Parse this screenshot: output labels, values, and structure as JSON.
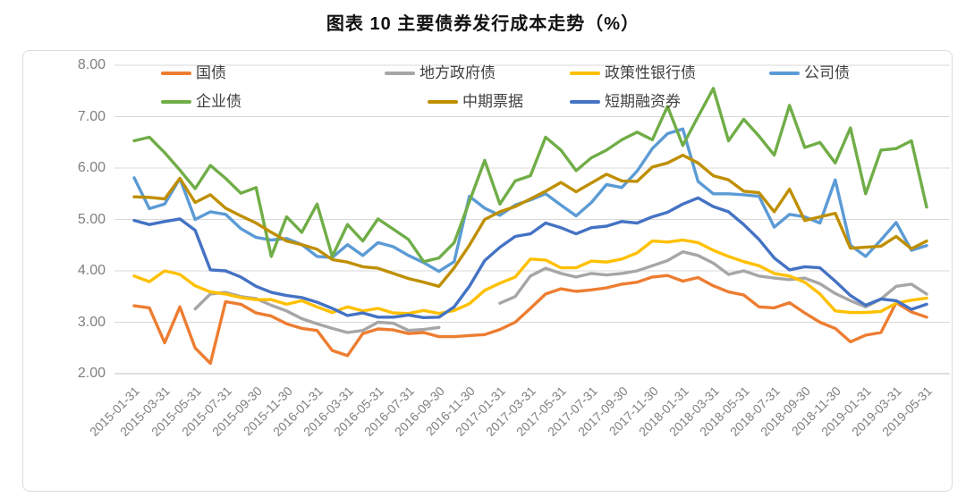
{
  "title": "图表 10 主要债券发行成本走势（%）",
  "chart_data": {
    "type": "line",
    "title": "图表 10 主要债券发行成本走势（%）",
    "unit": "%",
    "ylim": [
      2,
      8
    ],
    "y_tick_labels": [
      "8.00",
      "7.00",
      "6.00",
      "5.00",
      "4.00",
      "3.00",
      "2.00"
    ],
    "x_tick_labels": [
      "2015-01-31",
      "2015-03-31",
      "2015-05-31",
      "2015-07-31",
      "2015-09-30",
      "2015-11-30",
      "2016-01-31",
      "2016-03-31",
      "2016-05-31",
      "2016-07-31",
      "2016-09-30",
      "2016-11-30",
      "2017-01-31",
      "2017-03-31",
      "2017-05-31",
      "2017-07-31",
      "2017-09-30",
      "2017-11-30",
      "2018-01-31",
      "2018-03-31",
      "2018-05-31",
      "2018-07-31",
      "2018-09-30",
      "2018-11-30",
      "2019-01-31",
      "2019-03-31",
      "2019-05-31"
    ],
    "points_per_tick": 2,
    "x_range_months": "2015-01 to 2019-05, monthly (53 points)",
    "grid": "horizontal",
    "legend_position": "top, two rows overlaying plot",
    "legend_rows": [
      [
        "treasury",
        "local-gov",
        "policy-bank",
        "corporate"
      ],
      [
        "enterprise",
        "mtn",
        "scp"
      ]
    ],
    "series": [
      {
        "id": "treasury",
        "name": "国债",
        "color": "#ED7D31",
        "values": [
          3.32,
          3.28,
          2.6,
          3.3,
          2.5,
          2.2,
          3.4,
          3.35,
          3.18,
          3.12,
          2.97,
          2.88,
          2.84,
          2.45,
          2.35,
          2.78,
          2.87,
          2.85,
          2.78,
          2.8,
          2.72,
          2.72,
          2.74,
          2.76,
          2.86,
          3.0,
          3.27,
          3.55,
          3.65,
          3.6,
          3.63,
          3.67,
          3.74,
          3.78,
          3.88,
          3.91,
          3.8,
          3.87,
          3.71,
          3.59,
          3.53,
          3.3,
          3.28,
          3.38,
          3.18,
          3.0,
          2.88,
          2.62,
          2.75,
          2.8,
          3.38,
          3.2,
          3.1
        ]
      },
      {
        "id": "local-gov",
        "name": "地方政府债",
        "color": "#A6A6A6",
        "values": [
          null,
          null,
          null,
          null,
          3.26,
          3.55,
          3.58,
          3.5,
          3.46,
          3.33,
          3.22,
          3.07,
          2.97,
          2.88,
          2.8,
          2.84,
          3.0,
          2.98,
          2.84,
          2.86,
          2.9,
          null,
          null,
          null,
          3.37,
          3.5,
          3.9,
          4.05,
          3.95,
          3.88,
          3.95,
          3.92,
          3.95,
          4.0,
          4.1,
          4.2,
          4.37,
          4.3,
          4.15,
          3.93,
          4.0,
          3.9,
          3.86,
          3.83,
          3.86,
          3.75,
          3.56,
          3.42,
          3.3,
          3.45,
          3.7,
          3.74,
          3.55
        ]
      },
      {
        "id": "policy-bank",
        "name": "政策性银行债",
        "color": "#FFC000",
        "values": [
          3.9,
          3.79,
          4.0,
          3.93,
          3.71,
          3.59,
          3.55,
          3.48,
          3.44,
          3.44,
          3.35,
          3.42,
          3.3,
          3.19,
          3.3,
          3.22,
          3.27,
          3.18,
          3.17,
          3.23,
          3.17,
          3.23,
          3.36,
          3.62,
          3.76,
          3.88,
          4.23,
          4.21,
          4.06,
          4.06,
          4.19,
          4.17,
          4.23,
          4.35,
          4.58,
          4.56,
          4.6,
          4.55,
          4.4,
          4.28,
          4.18,
          4.1,
          3.95,
          3.9,
          3.78,
          3.55,
          3.22,
          3.19,
          3.19,
          3.21,
          3.37,
          3.43,
          3.47
        ]
      },
      {
        "id": "corporate",
        "name": "公司债",
        "color": "#5B9BD5",
        "values": [
          5.81,
          5.21,
          5.3,
          5.8,
          5.0,
          5.15,
          5.1,
          4.82,
          4.65,
          4.6,
          4.63,
          4.51,
          4.28,
          4.26,
          4.51,
          4.3,
          4.55,
          4.47,
          4.3,
          4.16,
          3.99,
          4.18,
          5.45,
          5.22,
          5.08,
          5.28,
          5.38,
          5.5,
          5.28,
          5.07,
          5.33,
          5.68,
          5.62,
          5.94,
          6.38,
          6.67,
          6.76,
          5.74,
          5.5,
          5.5,
          5.48,
          5.45,
          4.85,
          5.1,
          5.05,
          4.93,
          5.77,
          4.5,
          4.28,
          4.6,
          4.94,
          4.4,
          4.49
        ]
      },
      {
        "id": "enterprise",
        "name": "企业债",
        "color": "#70AD47",
        "values": [
          6.53,
          6.6,
          6.3,
          5.96,
          5.6,
          6.05,
          5.8,
          5.51,
          5.62,
          4.28,
          5.05,
          4.75,
          5.3,
          4.28,
          4.9,
          4.58,
          5.01,
          4.81,
          4.61,
          4.18,
          4.25,
          4.55,
          5.35,
          6.15,
          5.3,
          5.75,
          5.85,
          6.6,
          6.35,
          5.95,
          6.2,
          6.35,
          6.55,
          6.7,
          6.55,
          7.2,
          6.44,
          7.0,
          7.55,
          6.53,
          6.95,
          6.62,
          6.25,
          7.22,
          6.4,
          6.5,
          6.1,
          6.78,
          5.5,
          6.35,
          6.38,
          6.53,
          5.24
        ]
      },
      {
        "id": "mtn",
        "name": "中期票据",
        "color": "#BF8F00",
        "values": [
          5.44,
          5.43,
          5.4,
          5.8,
          5.33,
          5.48,
          5.22,
          5.07,
          4.93,
          4.75,
          4.58,
          4.51,
          4.42,
          4.22,
          4.17,
          4.08,
          4.05,
          3.95,
          3.85,
          3.78,
          3.7,
          4.06,
          4.5,
          5.0,
          5.15,
          5.25,
          5.4,
          5.55,
          5.72,
          5.54,
          5.71,
          5.88,
          5.75,
          5.74,
          6.02,
          6.1,
          6.25,
          6.1,
          5.85,
          5.77,
          5.55,
          5.52,
          5.15,
          5.59,
          4.98,
          5.05,
          5.12,
          4.44,
          4.46,
          4.48,
          4.67,
          4.43,
          4.58
        ]
      },
      {
        "id": "scp",
        "name": "短期融资券",
        "color": "#4472C4",
        "values": [
          4.98,
          4.9,
          4.96,
          5.01,
          4.79,
          4.02,
          4.0,
          3.88,
          3.7,
          3.58,
          3.52,
          3.48,
          3.39,
          3.27,
          3.13,
          3.18,
          3.1,
          3.1,
          3.14,
          3.09,
          3.1,
          3.3,
          3.7,
          4.2,
          4.46,
          4.67,
          4.72,
          4.93,
          4.84,
          4.72,
          4.84,
          4.87,
          4.96,
          4.93,
          5.05,
          5.14,
          5.3,
          5.42,
          5.25,
          5.15,
          4.9,
          4.61,
          4.25,
          4.02,
          4.08,
          4.06,
          3.8,
          3.52,
          3.33,
          3.45,
          3.42,
          3.25,
          3.35
        ]
      }
    ],
    "colors": {
      "gridline": "#D9D9D9",
      "axis_line": "#BFBFBF",
      "tick_text": "#808080",
      "legend_text": "#404040",
      "title_text": "#111111"
    }
  }
}
